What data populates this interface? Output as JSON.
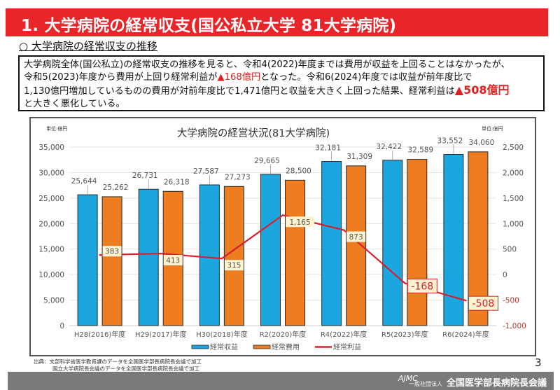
{
  "header": {
    "title": "1. 大学病院の経常収支(国公私立大学 81大学病院)",
    "subheading": "○ 大学病院の経常収支の推移"
  },
  "summary": {
    "line1": "大学病院全体(国公私立)の経常収支の推移を見ると、令和4(2022)年度までは費用が収益を上回ることはなかったが、",
    "line2_a": "令和5(2023)年度から費用が上回り経常利益が",
    "line2_red": "▲168億円",
    "line2_b": "となった。令和6(2024)年度では収益が前年度比で",
    "line3_a": "1,130億円増加しているものの費用が対前年度比で1,471億円と収益を大きく上回った結果、経常利益は",
    "line3_red": "▲508億円",
    "line4": "と大きく悪化している。"
  },
  "chart_data": {
    "type": "bar",
    "title": "大学病院の経営状況(81大学病院)",
    "unit_left": "単位:億円",
    "unit_right": "単位:億円",
    "categories": [
      "H28(2016)年度",
      "H29(2017)年度",
      "H30(2018)年度",
      "R2(2020)年度",
      "R4(2022)年度",
      "R5(2023)年度",
      "R6(2024)年度"
    ],
    "series": [
      {
        "name": "経常収益",
        "type": "bar",
        "axis": "left",
        "color": "#1ba6e0",
        "values": [
          25644,
          26731,
          27587,
          29665,
          32181,
          32422,
          33552
        ],
        "labels": [
          "25,644",
          "26,731",
          "27,587",
          "29,665",
          "32,181",
          "32,422",
          "33,552"
        ]
      },
      {
        "name": "経常費用",
        "type": "bar",
        "axis": "left",
        "color": "#ee7d22",
        "values": [
          25262,
          26318,
          27273,
          28500,
          31309,
          32589,
          34060
        ],
        "labels": [
          "25,262",
          "26,318",
          "27,273",
          "28,500",
          "31,309",
          "32,589",
          "34,060"
        ]
      },
      {
        "name": "経常利益",
        "type": "line",
        "axis": "right",
        "color": "#d7202e",
        "values": [
          383,
          413,
          315,
          1165,
          873,
          -168,
          -508
        ],
        "labels": [
          "383",
          "413",
          "315",
          "1,165",
          "873",
          "-168",
          "-508"
        ]
      }
    ],
    "ylim_left": [
      0,
      35000
    ],
    "yticks_left": [
      "0",
      "5,000",
      "10,000",
      "15,000",
      "20,000",
      "25,000",
      "30,000",
      "35,000"
    ],
    "ylim_right": [
      -1000,
      2500
    ],
    "yticks_right": [
      "-1,000",
      "-500",
      "0",
      "500",
      "1,000",
      "1,500",
      "2,000",
      "2,500"
    ],
    "grid": true,
    "legend_position": "bottom-center",
    "colors": {
      "negative_tick": "#c0392b",
      "grid": "#e3e3e3",
      "label_bg": "#fdf3d0"
    }
  },
  "footer": {
    "source_line1": "出典：文部科学省医学教育課のデータを全国医学部長病院長会議で加工",
    "source_line2": "国立大学病院長会議のデータを全国医学部長病院長会議で加工",
    "page_number": "3",
    "logo": "AJMC",
    "org_type": "一般社団法人",
    "org_name": "全国医学部長病院長会議"
  }
}
